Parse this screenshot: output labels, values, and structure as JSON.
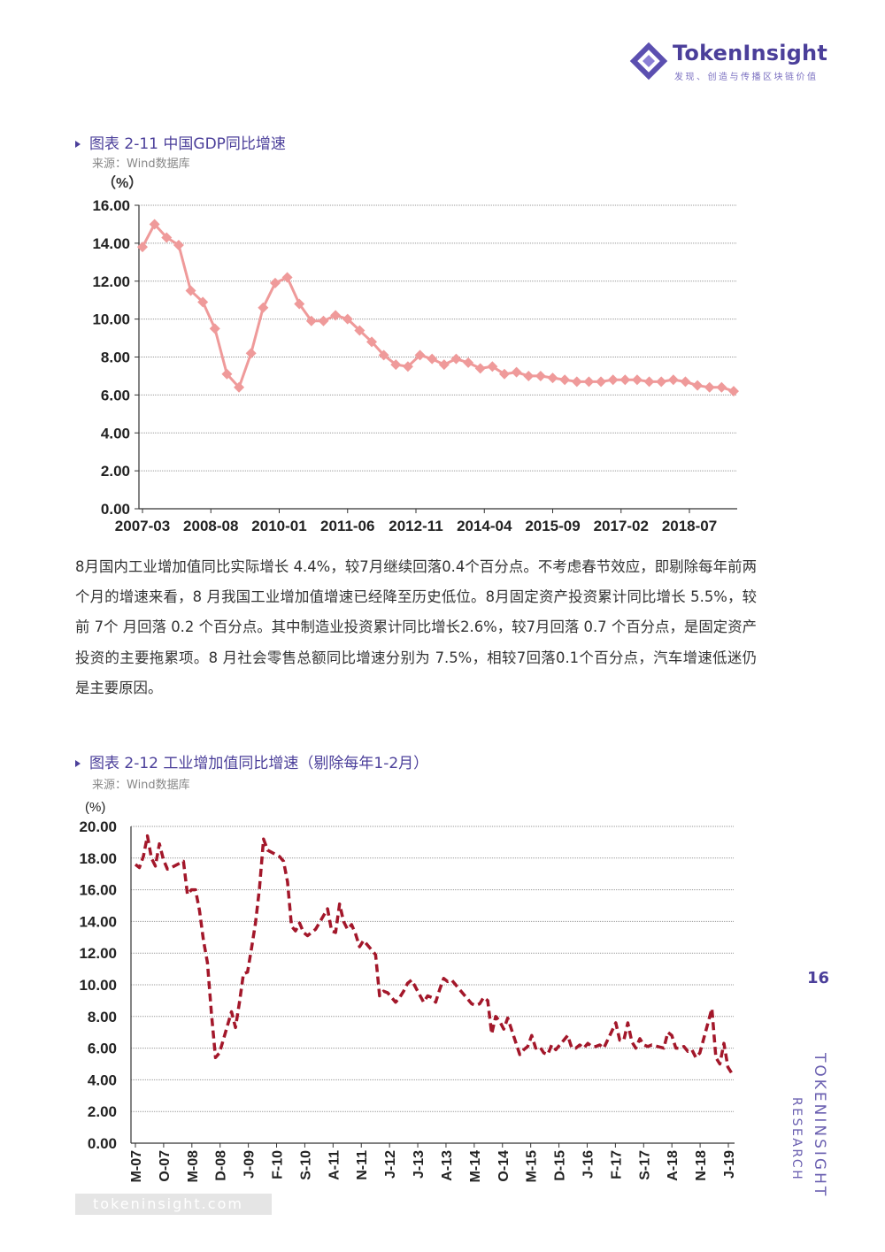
{
  "brand": {
    "name": "TokenInsight",
    "tagline": "发现、创造与传播区块链价值",
    "url": "tokeninsight.com",
    "side_label_1": "TOKENINSIGHT",
    "side_label_2": "RESEARCH",
    "page_number": "16",
    "colors": {
      "brand": "#4b3f9a",
      "series1": "#ef9a9a",
      "series2": "#a3172a"
    }
  },
  "figure1": {
    "title": "图表 2-11 中国GDP同比增速",
    "source": "来源：Wind数据库"
  },
  "figure2": {
    "title": "图表 2-12 工业增加值同比增速（剔除每年1-2月）",
    "source": "来源：Wind数据库"
  },
  "paragraph": "8月国内工业增加值同比实际增长 4.4%，较7月继续回落0.4个百分点。不考虑春节效应，即剔除每年前两个月的增速来看，8 月我国工业增加值增速已经降至历史低位。8月固定资产投资累计同比增长 5.5%，较前 7个 月回落 0.2 个百分点。其中制造业投资累计同比增长2.6%，较7月回落 0.7 个百分点，是固定资产投资的主要拖累项。8 月社会零售总额同比增速分别为 7.5%，相较7回落0.1个百分点，汽车增速低迷仍是主要原因。",
  "chart_data": [
    {
      "type": "line",
      "ylabel": "（%）",
      "ylim": [
        0,
        16
      ],
      "yticks": [
        "0.00",
        "2.00",
        "4.00",
        "6.00",
        "8.00",
        "10.00",
        "12.00",
        "14.00",
        "16.00"
      ],
      "xticks": [
        "2007-03",
        "2008-08",
        "2010-01",
        "2011-06",
        "2012-11",
        "2014-04",
        "2015-09",
        "2017-02",
        "2018-07"
      ],
      "grid": true,
      "marker": "diamond",
      "series": [
        {
          "color": "#ef9a9a",
          "x": [
            "2007-03",
            "2007-06",
            "2007-09",
            "2007-12",
            "2008-03",
            "2008-06",
            "2008-09",
            "2008-12",
            "2009-03",
            "2009-06",
            "2009-09",
            "2009-12",
            "2010-03",
            "2010-06",
            "2010-09",
            "2010-12",
            "2011-03",
            "2011-06",
            "2011-09",
            "2011-12",
            "2012-03",
            "2012-06",
            "2012-09",
            "2012-12",
            "2013-03",
            "2013-06",
            "2013-09",
            "2013-12",
            "2014-03",
            "2014-06",
            "2014-09",
            "2014-12",
            "2015-03",
            "2015-06",
            "2015-09",
            "2015-12",
            "2016-03",
            "2016-06",
            "2016-09",
            "2016-12",
            "2017-03",
            "2017-06",
            "2017-09",
            "2017-12",
            "2018-03",
            "2018-06",
            "2018-09",
            "2018-12",
            "2019-03",
            "2019-06"
          ],
          "values": [
            13.8,
            15.0,
            14.3,
            13.9,
            11.5,
            10.9,
            9.5,
            7.1,
            6.4,
            8.2,
            10.6,
            11.9,
            12.2,
            10.8,
            9.9,
            9.9,
            10.2,
            10.0,
            9.4,
            8.8,
            8.1,
            7.6,
            7.5,
            8.1,
            7.9,
            7.6,
            7.9,
            7.7,
            7.4,
            7.5,
            7.1,
            7.2,
            7.0,
            7.0,
            6.9,
            6.8,
            6.7,
            6.7,
            6.7,
            6.8,
            6.8,
            6.8,
            6.7,
            6.7,
            6.8,
            6.7,
            6.5,
            6.4,
            6.4,
            6.2
          ]
        }
      ]
    },
    {
      "type": "line",
      "ylabel": "(%)",
      "ylim": [
        0,
        20
      ],
      "yticks": [
        "0.00",
        "2.00",
        "4.00",
        "6.00",
        "8.00",
        "10.00",
        "12.00",
        "14.00",
        "16.00",
        "18.00",
        "20.00"
      ],
      "xticks": [
        "M-07",
        "O-07",
        "M-08",
        "D-08",
        "J-09",
        "F-10",
        "S-10",
        "A-11",
        "N-11",
        "J-12",
        "J-13",
        "A-13",
        "M-14",
        "O-14",
        "M-15",
        "D-15",
        "J-16",
        "F-17",
        "S-17",
        "A-18",
        "N-18",
        "J-19"
      ],
      "grid": true,
      "line_style": "dashed",
      "series": [
        {
          "color": "#a3172a",
          "x": [
            "2007-03",
            "2007-04",
            "2007-05",
            "2007-06",
            "2007-07",
            "2007-08",
            "2007-09",
            "2007-10",
            "2007-11",
            "2007-12",
            "2008-03",
            "2008-04",
            "2008-05",
            "2008-06",
            "2008-07",
            "2008-08",
            "2008-09",
            "2008-10",
            "2008-11",
            "2008-12",
            "2009-03",
            "2009-04",
            "2009-05",
            "2009-06",
            "2009-07",
            "2009-08",
            "2009-09",
            "2009-10",
            "2009-11",
            "2009-12",
            "2010-03",
            "2010-04",
            "2010-05",
            "2010-06",
            "2010-07",
            "2010-08",
            "2010-09",
            "2010-10",
            "2010-11",
            "2010-12",
            "2011-03",
            "2011-04",
            "2011-05",
            "2011-06",
            "2011-07",
            "2011-08",
            "2011-09",
            "2011-10",
            "2011-11",
            "2011-12",
            "2012-03",
            "2012-04",
            "2012-05",
            "2012-06",
            "2012-07",
            "2012-08",
            "2012-09",
            "2012-10",
            "2012-11",
            "2012-12",
            "2013-03",
            "2013-04",
            "2013-05",
            "2013-06",
            "2013-07",
            "2013-08",
            "2013-09",
            "2013-10",
            "2013-11",
            "2013-12",
            "2014-03",
            "2014-04",
            "2014-05",
            "2014-06",
            "2014-07",
            "2014-08",
            "2014-09",
            "2014-10",
            "2014-11",
            "2014-12",
            "2015-03",
            "2015-04",
            "2015-05",
            "2015-06",
            "2015-07",
            "2015-08",
            "2015-09",
            "2015-10",
            "2015-11",
            "2015-12",
            "2016-03",
            "2016-04",
            "2016-05",
            "2016-06",
            "2016-07",
            "2016-08",
            "2016-09",
            "2016-10",
            "2016-11",
            "2016-12",
            "2017-03",
            "2017-04",
            "2017-05",
            "2017-06",
            "2017-07",
            "2017-08",
            "2017-09",
            "2017-10",
            "2017-11",
            "2017-12",
            "2018-03",
            "2018-04",
            "2018-05",
            "2018-06",
            "2018-07",
            "2018-08",
            "2018-09",
            "2018-10",
            "2018-11",
            "2018-12",
            "2019-03",
            "2019-04",
            "2019-05",
            "2019-06",
            "2019-07",
            "2019-08"
          ],
          "values": [
            17.6,
            17.4,
            18.1,
            19.4,
            18.0,
            17.5,
            18.9,
            17.9,
            17.3,
            17.4,
            17.8,
            15.7,
            16.0,
            16.0,
            14.7,
            12.8,
            11.4,
            8.2,
            5.4,
            5.7,
            8.3,
            7.3,
            8.9,
            10.7,
            10.8,
            12.3,
            13.9,
            16.1,
            19.2,
            18.5,
            18.1,
            17.8,
            16.5,
            13.7,
            13.4,
            13.9,
            13.3,
            13.1,
            13.3,
            13.5,
            14.8,
            13.4,
            13.3,
            15.1,
            14.0,
            13.5,
            13.8,
            13.2,
            12.4,
            12.8,
            11.9,
            9.3,
            9.6,
            9.5,
            9.2,
            8.9,
            9.2,
            9.6,
            10.1,
            10.3,
            8.9,
            9.3,
            9.2,
            8.9,
            9.7,
            10.4,
            10.2,
            10.3,
            10.0,
            9.7,
            8.8,
            8.7,
            8.8,
            9.2,
            9.0,
            6.9,
            8.0,
            7.7,
            7.2,
            7.9,
            5.6,
            5.9,
            6.1,
            6.8,
            6.0,
            6.1,
            5.7,
            5.6,
            6.2,
            5.9,
            6.8,
            6.0,
            6.0,
            6.2,
            6.0,
            6.3,
            6.1,
            6.1,
            6.2,
            6.0,
            7.6,
            6.5,
            6.5,
            7.6,
            6.4,
            6.0,
            6.6,
            6.2,
            6.1,
            6.2,
            6.0,
            7.0,
            6.8,
            6.0,
            6.0,
            6.1,
            5.8,
            5.9,
            5.4,
            5.7,
            8.5,
            5.4,
            5.0,
            6.3,
            4.8,
            4.4
          ]
        }
      ]
    }
  ]
}
